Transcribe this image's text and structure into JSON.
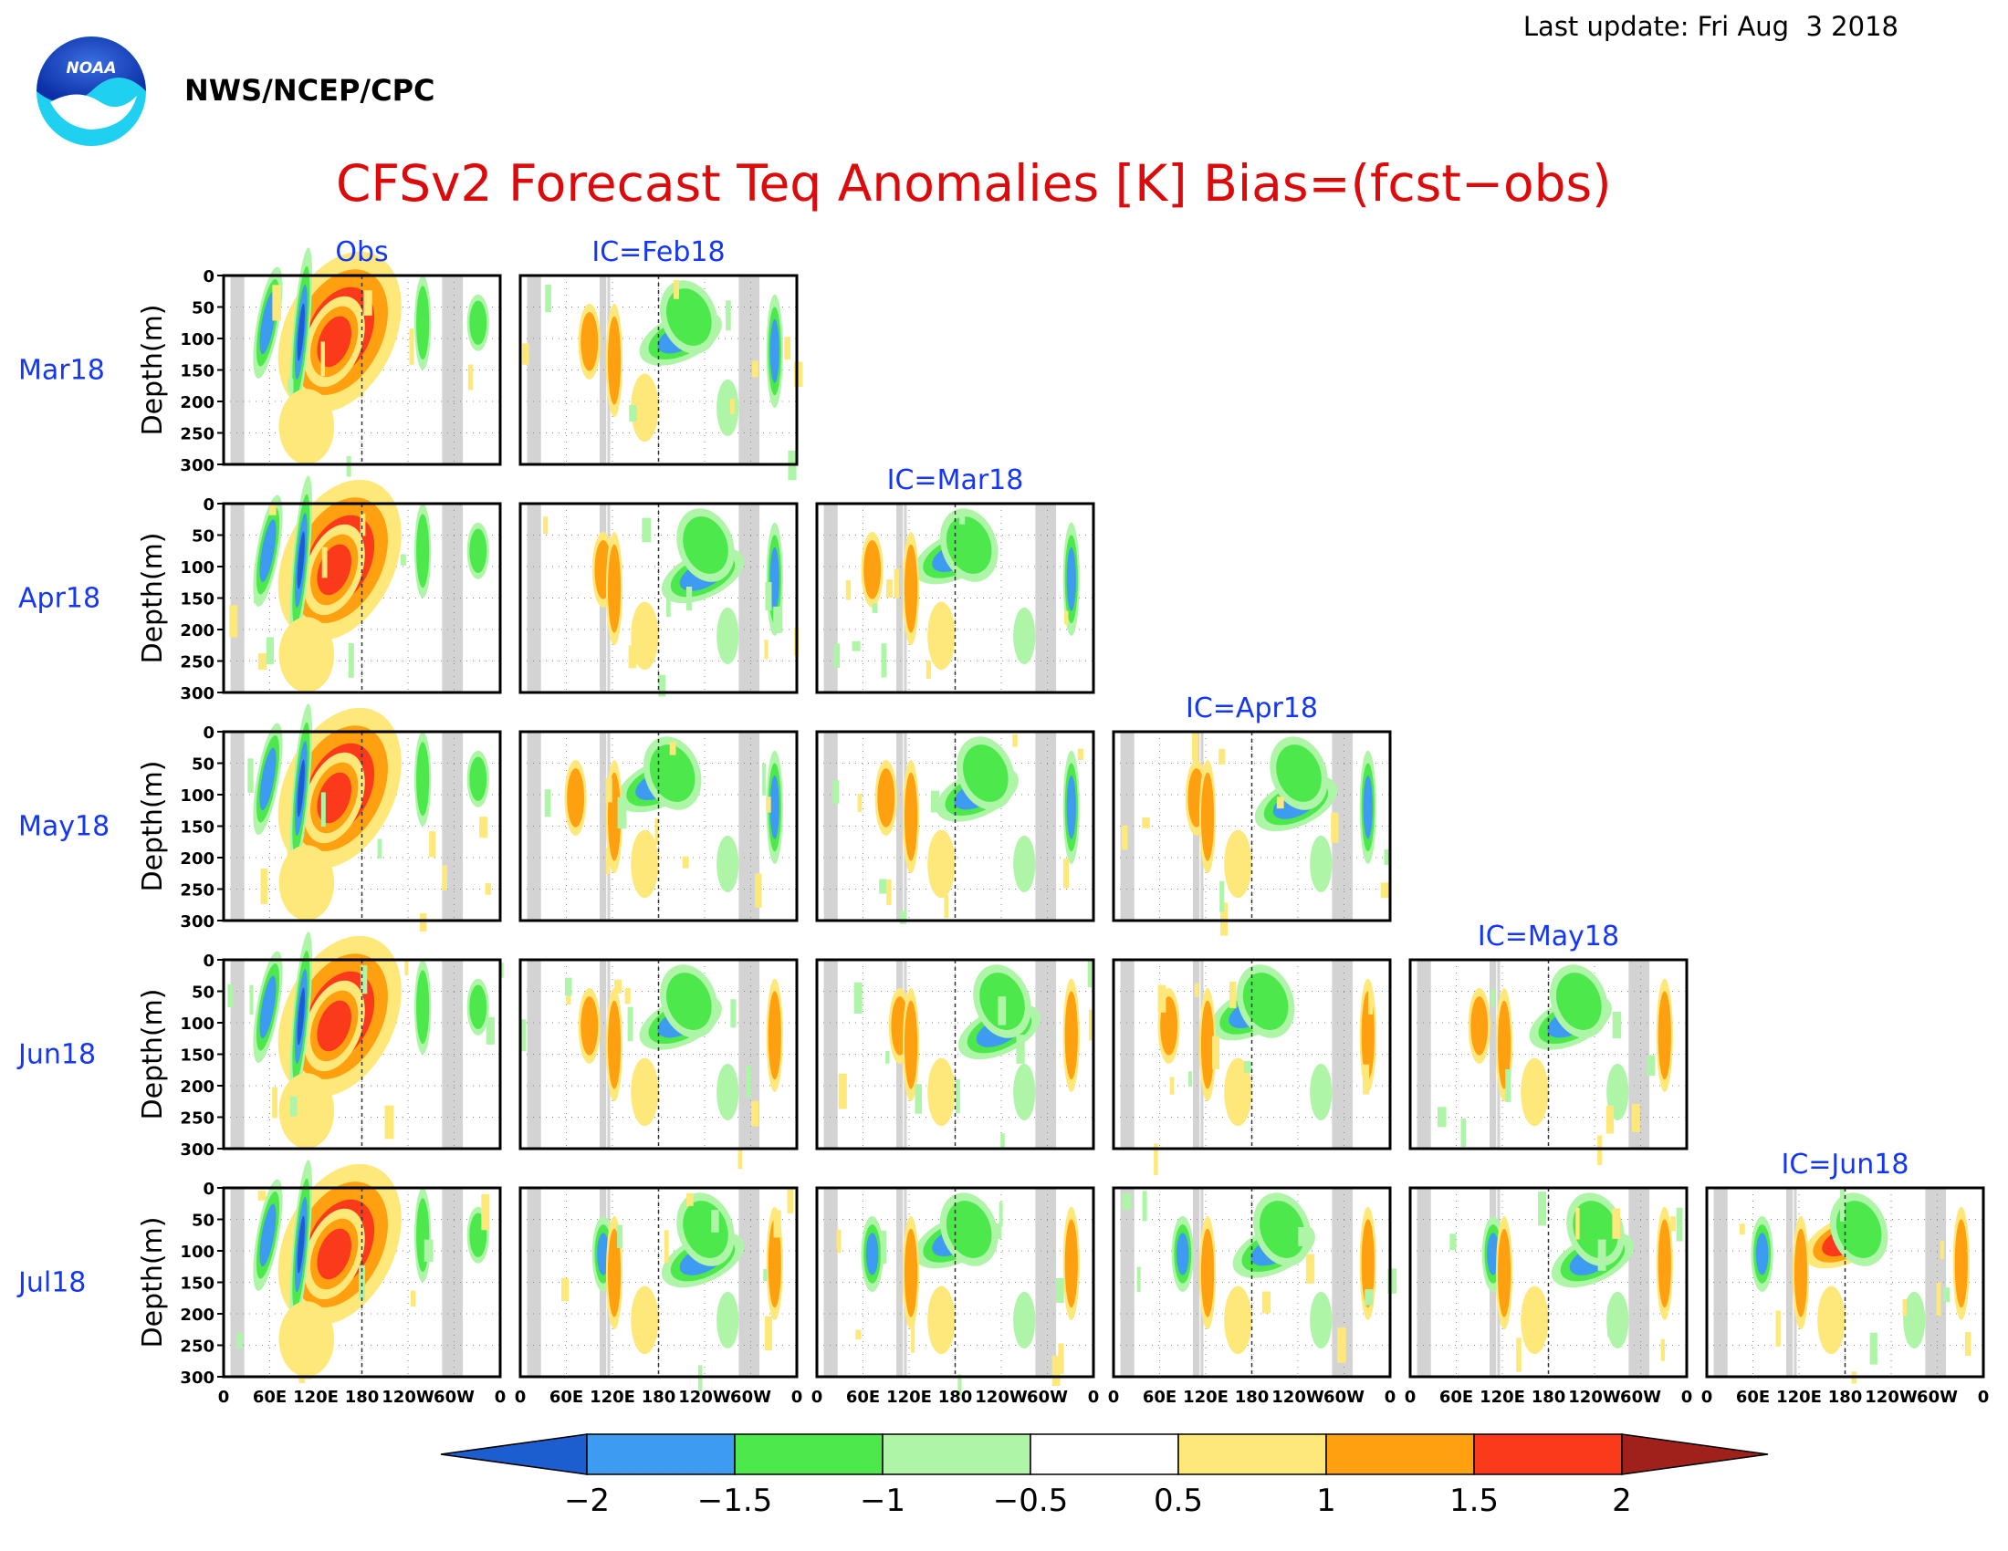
{
  "header": {
    "agency": "NWS/NCEP/CPC",
    "last_update": "Last update: Fri Aug  3 2018",
    "logo_text": "NOAA"
  },
  "chart_data": {
    "type": "heatmap",
    "title": "CFSv2 Forecast Teq Anomalies [K] Bias=(fcst−obs)",
    "ylabel": "Depth(m)",
    "ylim": [
      300,
      0
    ],
    "yticks": [
      "0",
      "50",
      "100",
      "150",
      "200",
      "250",
      "300"
    ],
    "xticks": [
      "0",
      "60E",
      "120E",
      "180",
      "120W",
      "60W",
      "0"
    ],
    "rows": [
      "Mar18",
      "Apr18",
      "May18",
      "Jun18",
      "Jul18"
    ],
    "columns": [
      "Obs",
      "IC=Feb18",
      "IC=Mar18",
      "IC=Apr18",
      "IC=May18",
      "IC=Jun18"
    ],
    "colorbar": {
      "labels": [
        "−2",
        "−1.5",
        "−1",
        "−0.5",
        "0.5",
        "1",
        "1.5",
        "2"
      ],
      "colors": [
        "#1c5ecf",
        "#3e9bf2",
        "#4ce84c",
        "#aef5a8",
        "#ffffff",
        "#fee87a",
        "#ffa010",
        "#fb3a1c",
        "#a0201c"
      ]
    },
    "land_color": "#d3d3d3",
    "grid": "dotted"
  }
}
